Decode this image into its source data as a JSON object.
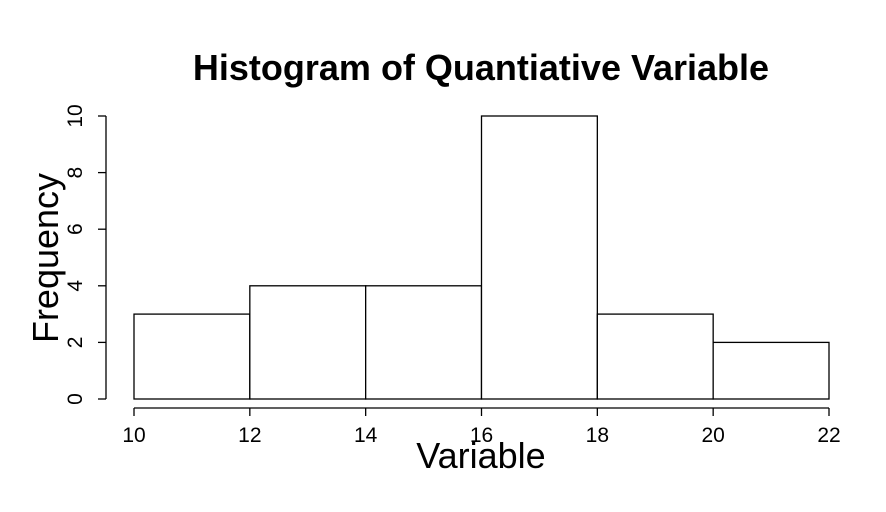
{
  "chart_data": {
    "type": "bar",
    "title": "Histogram of Quantiative Variable",
    "xlabel": "Variable",
    "ylabel": "Frequency",
    "bins": [
      {
        "from": 10,
        "to": 12,
        "value": 3
      },
      {
        "from": 12,
        "to": 14,
        "value": 4
      },
      {
        "from": 14,
        "to": 16,
        "value": 4
      },
      {
        "from": 16,
        "to": 18,
        "value": 10
      },
      {
        "from": 18,
        "to": 20,
        "value": 3
      },
      {
        "from": 20,
        "to": 22,
        "value": 2
      }
    ],
    "xlim": [
      10,
      22
    ],
    "ylim": [
      0,
      10
    ],
    "xticks": [
      "10",
      "12",
      "14",
      "16",
      "18",
      "20",
      "22"
    ],
    "yticks": [
      "0",
      "2",
      "4",
      "6",
      "8",
      "10"
    ],
    "grid": false,
    "legend": "none",
    "bar_fill": "#ffffff",
    "bar_stroke": "#000000"
  }
}
